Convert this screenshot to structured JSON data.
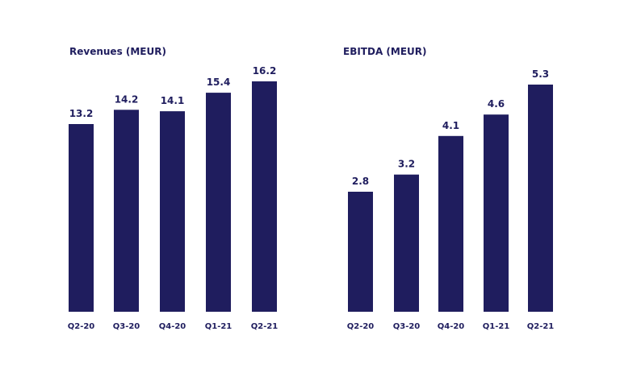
{
  "colors": {
    "bar": "#1f1d5e",
    "text": "#1f1d5e",
    "background": "#ffffff"
  },
  "chart_data": [
    {
      "type": "bar",
      "title": "Revenues (MEUR)",
      "xlabel": "",
      "ylabel": "",
      "categories": [
        "Q2-20",
        "Q3-20",
        "Q4-20",
        "Q1-21",
        "Q2-21"
      ],
      "values": [
        13.2,
        14.2,
        14.1,
        15.4,
        16.2
      ],
      "value_labels": [
        "13.2",
        "14.2",
        "14.1",
        "15.4",
        "16.2"
      ],
      "ylim": [
        0,
        16.2
      ],
      "grid": false,
      "legend": "none"
    },
    {
      "type": "bar",
      "title": "EBITDA (MEUR)",
      "xlabel": "",
      "ylabel": "",
      "categories": [
        "Q2-20",
        "Q3-20",
        "Q4-20",
        "Q1-21",
        "Q2-21"
      ],
      "values": [
        2.8,
        3.2,
        4.1,
        4.6,
        5.3
      ],
      "value_labels": [
        "2.8",
        "3.2",
        "4.1",
        "4.6",
        "5.3"
      ],
      "ylim": [
        0,
        5.3
      ],
      "grid": false,
      "legend": "none"
    }
  ]
}
